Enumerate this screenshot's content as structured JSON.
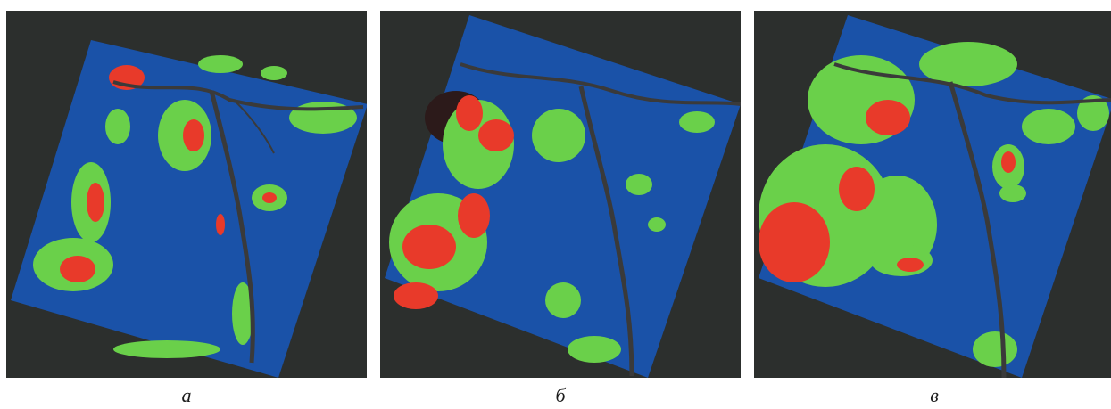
{
  "colors": {
    "background": "#2c2f2d",
    "water_blue": "#1a52a8",
    "vegetation_green": "#6ad04a",
    "burn_red": "#e83a2a",
    "river_dark": "#3a3a3a"
  },
  "panels": [
    {
      "id": "a",
      "caption": "a"
    },
    {
      "id": "b",
      "caption": "б"
    },
    {
      "id": "c",
      "caption": "в"
    }
  ]
}
